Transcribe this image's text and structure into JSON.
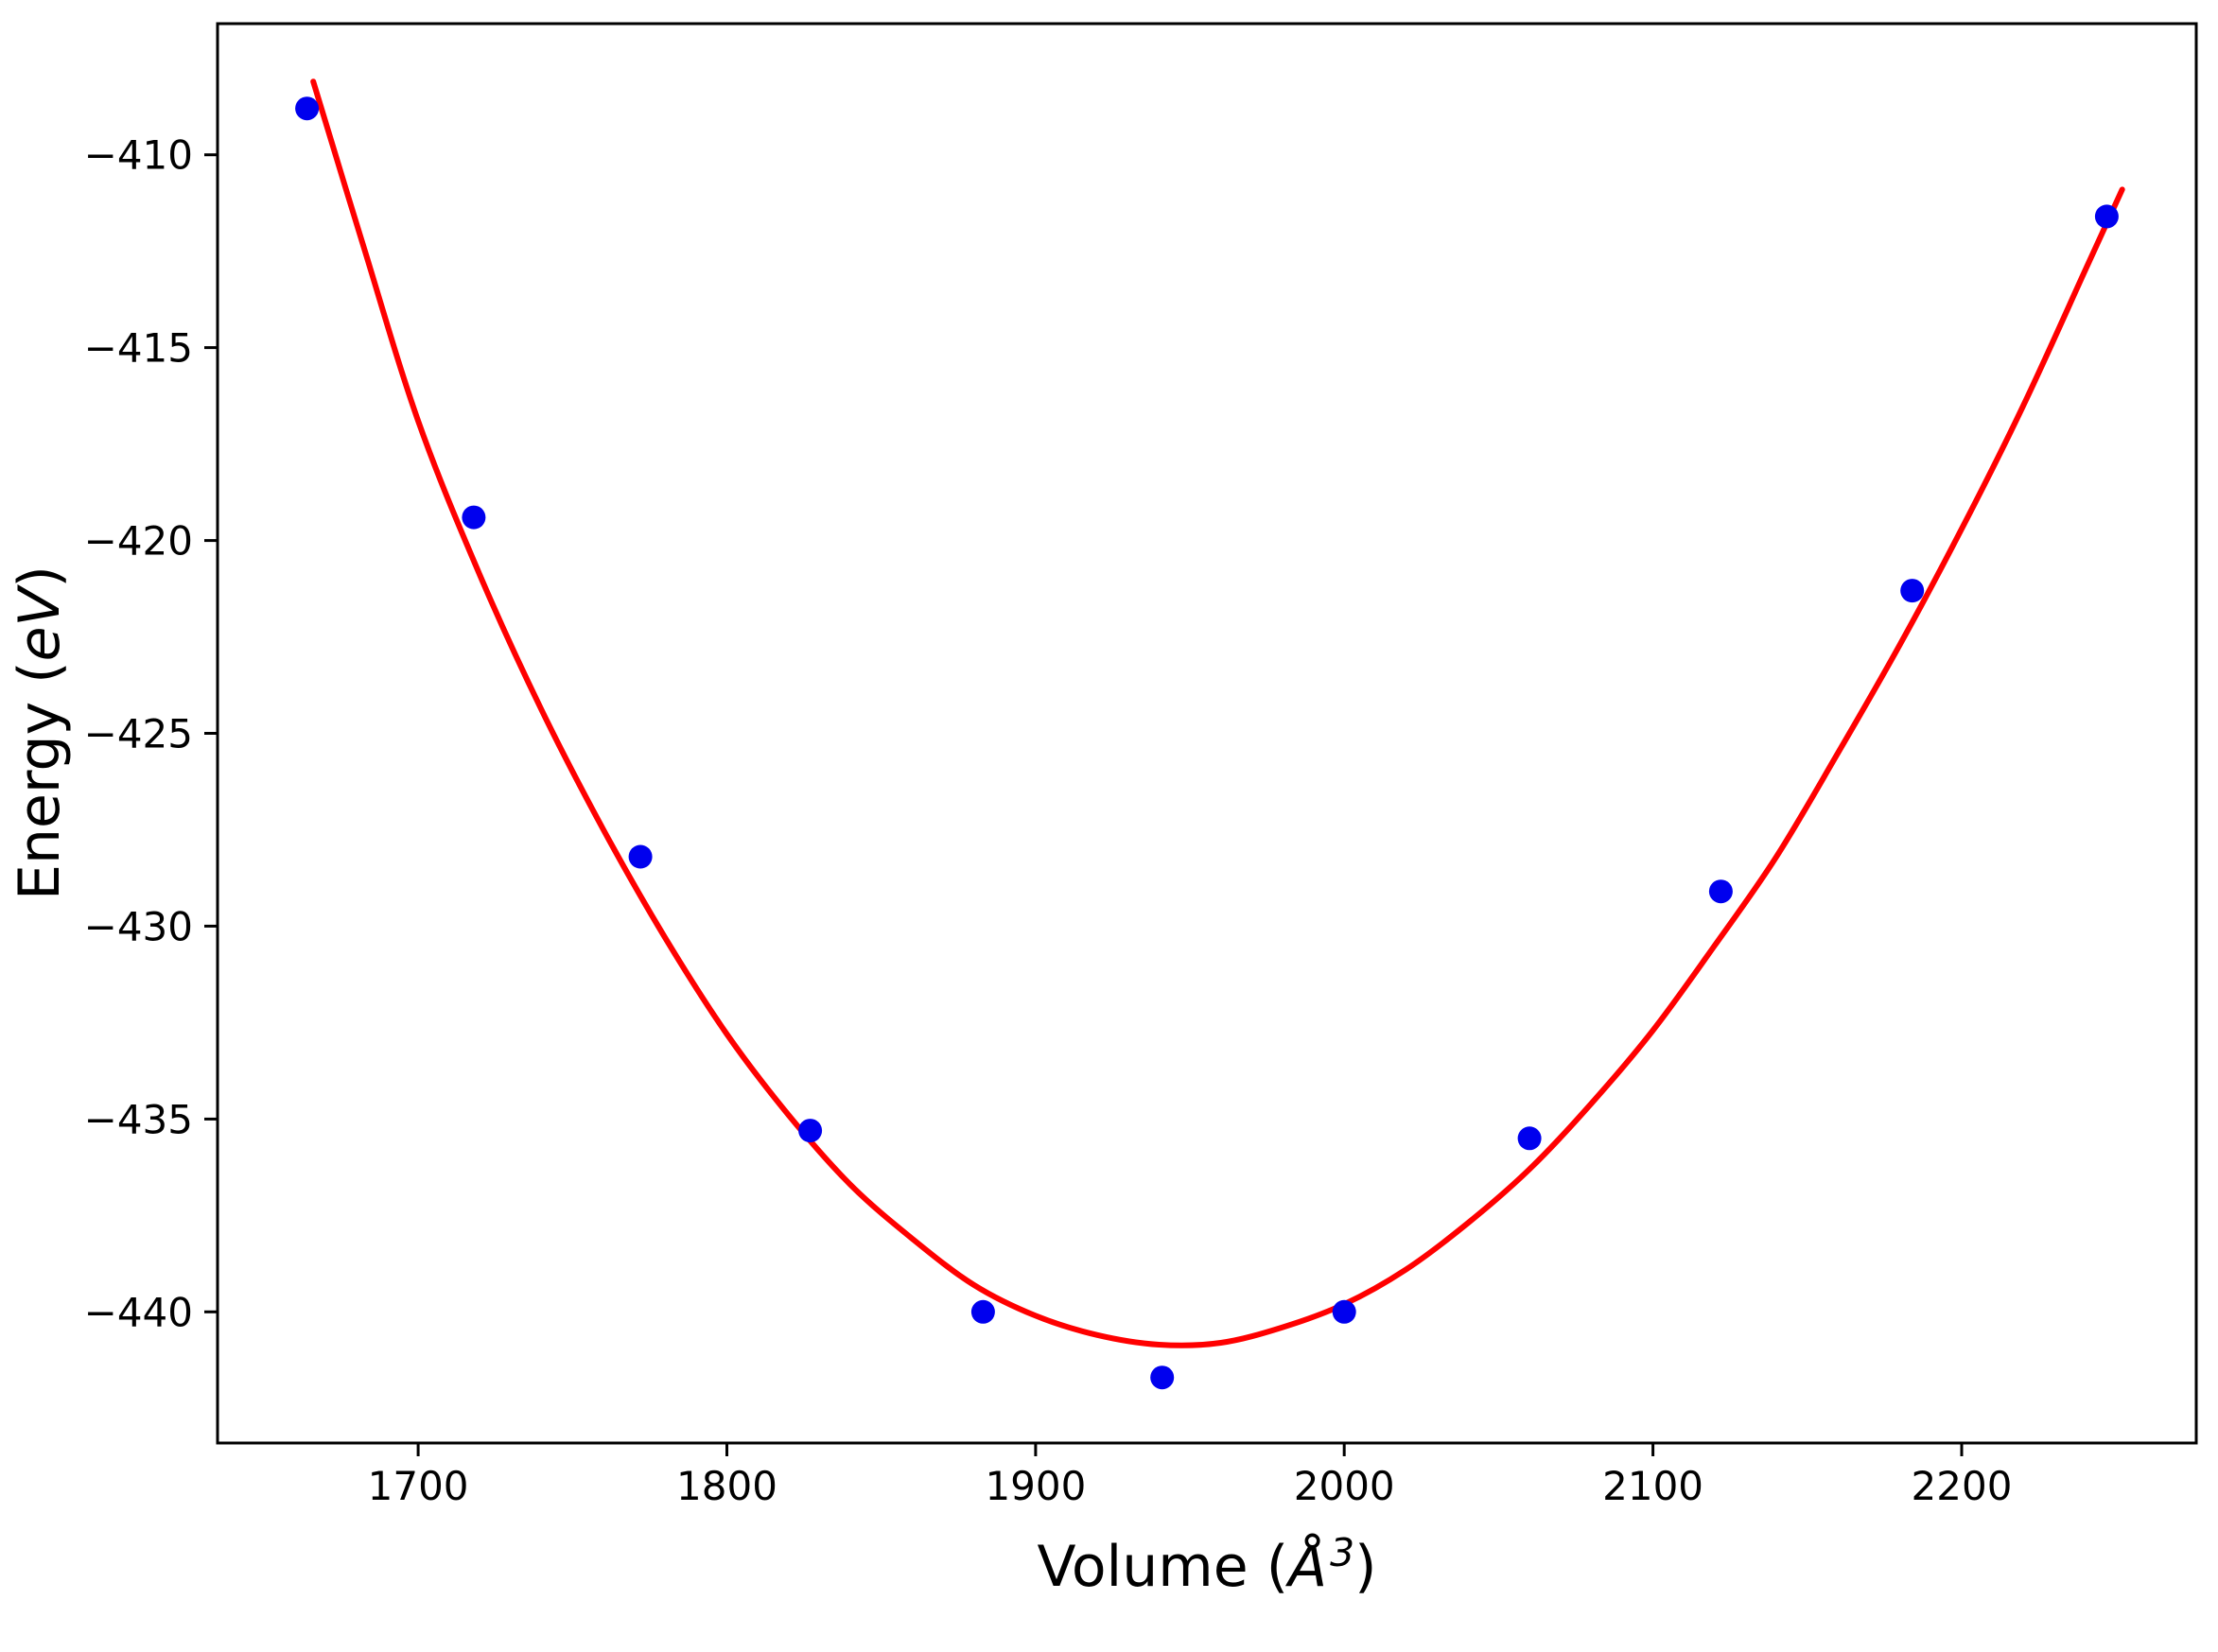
{
  "figure": {
    "background": "#ffffff",
    "frame_color": "#000000"
  },
  "chart_data": {
    "type": "scatter",
    "title": "",
    "grid": false,
    "legend": "none",
    "xlabel": {
      "prefix": "Volume (",
      "symbol": "Å",
      "exponent": "3",
      "suffix": ")"
    },
    "ylabel": {
      "prefix": "Energy (",
      "symbol": "eV",
      "suffix": ")"
    },
    "xlim": [
      1635,
      2276
    ],
    "ylim": [
      -443.4,
      -406.6
    ],
    "xticks": {
      "values": [
        1700,
        1800,
        1900,
        2000,
        2100,
        2200
      ],
      "labels": [
        "1700",
        "1800",
        "1900",
        "2000",
        "2100",
        "2200"
      ]
    },
    "yticks": {
      "values": [
        -410,
        -415,
        -420,
        -425,
        -430,
        -435,
        -440
      ],
      "labels": [
        "−410",
        "−415",
        "−420",
        "−425",
        "−430",
        "−435",
        "−440"
      ]
    },
    "series": [
      {
        "name": "energy-points",
        "type": "scatter",
        "color": "#0000ee",
        "marker": "circle",
        "x": [
          1664,
          1718,
          1772,
          1827,
          1883,
          1941,
          2000,
          2060,
          2122,
          2184,
          2247
        ],
        "y": [
          -408.8,
          -419.4,
          -428.2,
          -435.3,
          -440.0,
          -441.7,
          -440.0,
          -435.5,
          -429.1,
          -421.3,
          -411.6
        ]
      },
      {
        "name": "eos-fit-curve",
        "type": "line",
        "color": "#ff0000",
        "x": [
          1666,
          1682,
          1700,
          1720,
          1740,
          1760,
          1780,
          1800,
          1820,
          1840,
          1860,
          1880,
          1900,
          1920,
          1940,
          1960,
          1980,
          2000,
          2020,
          2040,
          2060,
          2080,
          2100,
          2120,
          2140,
          2160,
          2180,
          2200,
          2220,
          2240,
          2252
        ],
        "y": [
          -408.1,
          -412.3,
          -416.9,
          -420.9,
          -424.4,
          -427.5,
          -430.3,
          -432.8,
          -434.9,
          -436.7,
          -438.1,
          -439.3,
          -440.1,
          -440.6,
          -440.85,
          -440.8,
          -440.4,
          -439.8,
          -438.9,
          -437.7,
          -436.3,
          -434.6,
          -432.7,
          -430.5,
          -428.2,
          -425.5,
          -422.7,
          -419.7,
          -416.5,
          -413.0,
          -410.9
        ]
      }
    ]
  }
}
